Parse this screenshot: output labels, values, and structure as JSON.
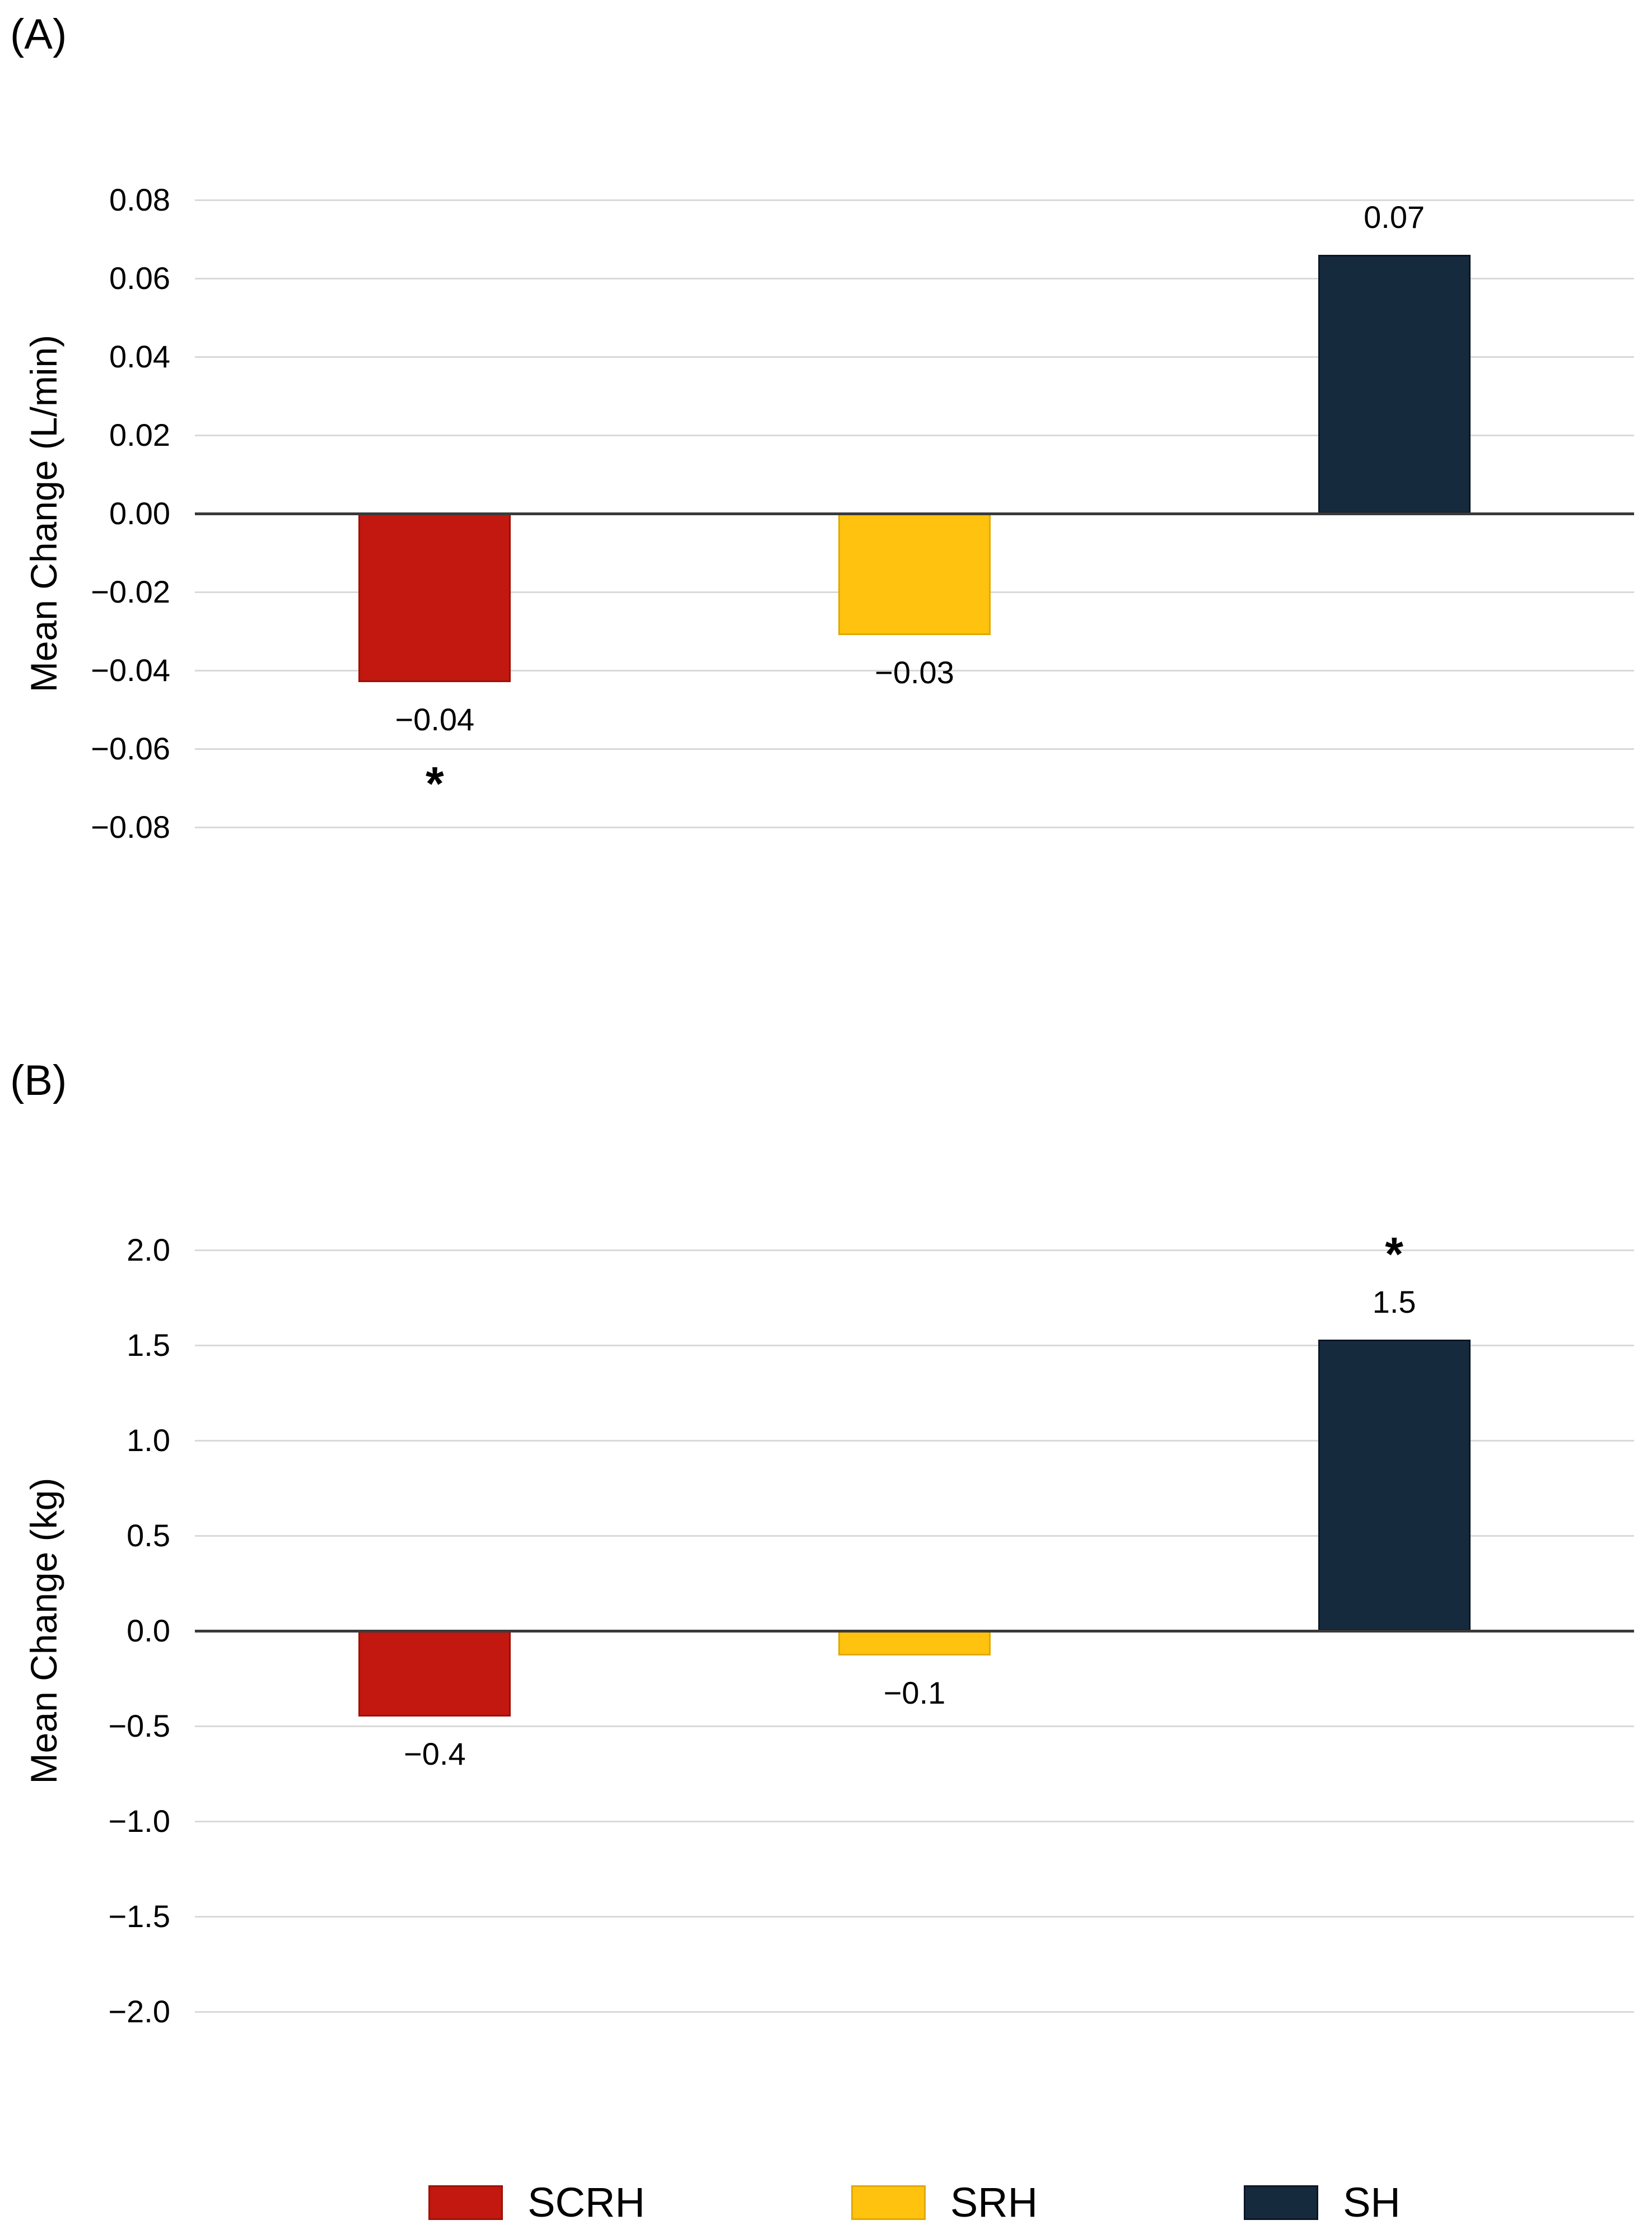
{
  "legend": {
    "items": [
      {
        "label": "SCRH",
        "color": "#C2180F",
        "border_color": "#9C1108"
      },
      {
        "label": "SRH",
        "color": "#FFC20E",
        "border_color": "#E0A900"
      },
      {
        "label": "SH",
        "color": "#162A3E",
        "border_color": "#0B1726"
      }
    ]
  },
  "chart_data": [
    {
      "type": "bar",
      "panel_label": "(A)",
      "title": "",
      "xlabel": "",
      "ylabel": "Mean Change (L/min)",
      "ylim": [
        -0.08,
        0.08
      ],
      "ytick_step": 0.02,
      "grid": true,
      "legend_position": "bottom-shared",
      "categories": [
        "SCRH",
        "SRH",
        "SH"
      ],
      "values": [
        -0.04,
        -0.03,
        0.07
      ],
      "yticks": [
        {
          "label": "0.08",
          "value": 0.08
        },
        {
          "label": "0.06",
          "value": 0.06
        },
        {
          "label": "0.04",
          "value": 0.04
        },
        {
          "label": "0.02",
          "value": 0.02
        },
        {
          "label": "0.00",
          "value": 0.0
        },
        {
          "label": "−0.02",
          "value": -0.02
        },
        {
          "label": "−0.04",
          "value": -0.04
        },
        {
          "label": "−0.06",
          "value": -0.06
        },
        {
          "label": "−0.08",
          "value": -0.08
        }
      ],
      "bars": [
        {
          "category": "SCRH",
          "value": -0.04,
          "draw_value": -0.043,
          "value_label": "−0.04",
          "annotation": "*",
          "annotation_side": "below"
        },
        {
          "category": "SRH",
          "value": -0.03,
          "draw_value": -0.031,
          "value_label": "−0.03",
          "annotation": null,
          "annotation_side": null
        },
        {
          "category": "SH",
          "value": 0.07,
          "draw_value": 0.066,
          "value_label": "0.07",
          "annotation": null,
          "annotation_side": null
        }
      ]
    },
    {
      "type": "bar",
      "panel_label": "(B)",
      "title": "",
      "xlabel": "",
      "ylabel": "Mean Change (kg)",
      "ylim": [
        -2.0,
        2.0
      ],
      "ytick_step": 0.5,
      "grid": true,
      "legend_position": "bottom-shared",
      "categories": [
        "SCRH",
        "SRH",
        "SH"
      ],
      "values": [
        -0.4,
        -0.1,
        1.5
      ],
      "yticks": [
        {
          "label": "2.0",
          "value": 2.0
        },
        {
          "label": "1.5",
          "value": 1.5
        },
        {
          "label": "1.0",
          "value": 1.0
        },
        {
          "label": "0.5",
          "value": 0.5
        },
        {
          "label": "0.0",
          "value": 0.0
        },
        {
          "label": "−0.5",
          "value": -0.5
        },
        {
          "label": "−1.0",
          "value": -1.0
        },
        {
          "label": "−1.5",
          "value": -1.5
        },
        {
          "label": "−2.0",
          "value": -2.0
        }
      ],
      "bars": [
        {
          "category": "SCRH",
          "value": -0.4,
          "draw_value": -0.45,
          "value_label": "−0.4",
          "annotation": null,
          "annotation_side": null
        },
        {
          "category": "SRH",
          "value": -0.1,
          "draw_value": -0.13,
          "value_label": "−0.1",
          "annotation": null,
          "annotation_side": null
        },
        {
          "category": "SH",
          "value": 1.5,
          "draw_value": 1.53,
          "value_label": "1.5",
          "annotation": "*",
          "annotation_side": "above"
        }
      ]
    }
  ]
}
